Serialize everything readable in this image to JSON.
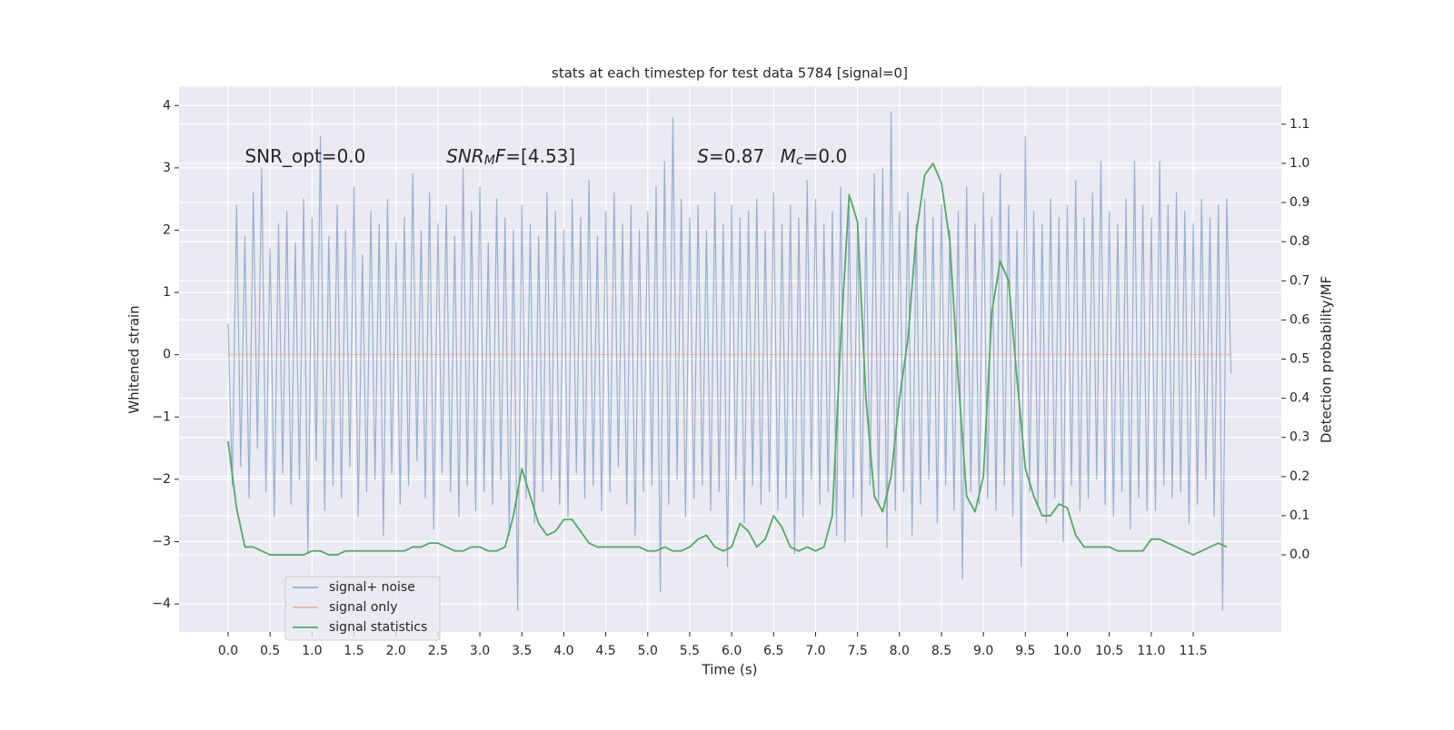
{
  "chart_data": {
    "type": "line",
    "title": "stats at each timestep for test data 5784 [signal=0]",
    "xlabel": "Time (s)",
    "ylabel": "Whitened strain",
    "y2label": "Detection probability/MF",
    "xlim": [
      -0.585,
      12.55
    ],
    "ylim": [
      -4.45,
      4.31
    ],
    "y2lim": [
      -0.197,
      1.197
    ],
    "xticks": [
      {
        "value": 0,
        "label": "0.0"
      },
      0.5,
      {
        "value": 1,
        "label": "1.0"
      },
      1.5,
      {
        "value": 2,
        "label": "2.0"
      },
      2.5,
      {
        "value": 3,
        "label": "3.0"
      },
      3.5,
      {
        "value": 4,
        "label": "4.0"
      },
      4.5,
      {
        "value": 5,
        "label": "5.0"
      },
      5.5,
      {
        "value": 6,
        "label": "6.0"
      },
      6.5,
      {
        "value": 7,
        "label": "7.0"
      },
      7.5,
      {
        "value": 8,
        "label": "8.0"
      },
      8.5,
      {
        "value": 9,
        "label": "9.0"
      },
      9.5,
      {
        "value": 10,
        "label": "10.0"
      },
      10.5,
      {
        "value": 11,
        "label": "11.0"
      },
      11.5
    ],
    "yticks": [
      {
        "value": -4,
        "label": "−4"
      },
      {
        "value": -3,
        "label": "−3"
      },
      {
        "value": -2,
        "label": "−2"
      },
      {
        "value": -1,
        "label": "−1"
      },
      0,
      1,
      2,
      3,
      4
    ],
    "y2ticks": [
      {
        "value": 0,
        "label": "0.0"
      },
      0.1,
      0.2,
      0.3,
      0.4,
      0.5,
      0.6,
      0.7,
      0.8,
      0.9,
      {
        "value": 1,
        "label": "1.0"
      },
      1.1
    ],
    "grid": true,
    "legend": "lower left",
    "annotations": [
      {
        "x": 0.2,
        "y": 3.17,
        "parts": [
          {
            "text": "SNR_opt=0.0"
          }
        ]
      },
      {
        "x": 2.6,
        "y": 3.17,
        "parts": [
          {
            "text": "SNR",
            "italic": true
          },
          {
            "text": "M",
            "italic": true,
            "sub": true
          },
          {
            "text": "F",
            "italic": true
          },
          {
            "text": "=[4.53]"
          }
        ]
      },
      {
        "x": 5.59,
        "y": 3.17,
        "parts": [
          {
            "text": "S",
            "italic": true
          },
          {
            "text": "=0.87"
          }
        ]
      },
      {
        "x": 6.58,
        "y": 3.17,
        "parts": [
          {
            "text": "M",
            "italic": true
          },
          {
            "text": "c",
            "italic": true,
            "sub": true
          },
          {
            "text": "=0.0"
          }
        ]
      }
    ],
    "series": [
      {
        "name": "signal+ noise",
        "color": "#4c72b0",
        "alpha": 0.5,
        "x": [
          0,
          0.05,
          0.1,
          0.15,
          0.2,
          0.25,
          0.3,
          0.35,
          0.4,
          0.45,
          0.5,
          0.55,
          0.6,
          0.65,
          0.7,
          0.75,
          0.8,
          0.85,
          0.9,
          0.95,
          1,
          1.05,
          1.1,
          1.15,
          1.2,
          1.25,
          1.3,
          1.35,
          1.4,
          1.45,
          1.5,
          1.55,
          1.6,
          1.65,
          1.7,
          1.75,
          1.8,
          1.85,
          1.9,
          1.95,
          2,
          2.05,
          2.1,
          2.15,
          2.2,
          2.25,
          2.3,
          2.35,
          2.4,
          2.45,
          2.5,
          2.55,
          2.6,
          2.65,
          2.7,
          2.75,
          2.8,
          2.85,
          2.9,
          2.95,
          3,
          3.05,
          3.1,
          3.15,
          3.2,
          3.25,
          3.3,
          3.35,
          3.4,
          3.45,
          3.5,
          3.55,
          3.6,
          3.65,
          3.7,
          3.75,
          3.8,
          3.85,
          3.9,
          3.95,
          4,
          4.05,
          4.1,
          4.15,
          4.2,
          4.25,
          4.3,
          4.35,
          4.4,
          4.45,
          4.5,
          4.55,
          4.6,
          4.65,
          4.7,
          4.75,
          4.8,
          4.85,
          4.9,
          4.95,
          5,
          5.05,
          5.1,
          5.15,
          5.2,
          5.25,
          5.3,
          5.35,
          5.4,
          5.45,
          5.5,
          5.55,
          5.6,
          5.65,
          5.7,
          5.75,
          5.8,
          5.85,
          5.9,
          5.95,
          6,
          6.05,
          6.1,
          6.15,
          6.2,
          6.25,
          6.3,
          6.35,
          6.4,
          6.45,
          6.5,
          6.55,
          6.6,
          6.65,
          6.7,
          6.75,
          6.8,
          6.85,
          6.9,
          6.95,
          7,
          7.05,
          7.1,
          7.15,
          7.2,
          7.25,
          7.3,
          7.35,
          7.4,
          7.45,
          7.5,
          7.55,
          7.6,
          7.65,
          7.7,
          7.75,
          7.8,
          7.85,
          7.9,
          7.95,
          8,
          8.05,
          8.1,
          8.15,
          8.2,
          8.25,
          8.3,
          8.35,
          8.4,
          8.45,
          8.5,
          8.55,
          8.6,
          8.65,
          8.7,
          8.75,
          8.8,
          8.85,
          8.9,
          8.95,
          9,
          9.05,
          9.1,
          9.15,
          9.2,
          9.25,
          9.3,
          9.35,
          9.4,
          9.45,
          9.5,
          9.55,
          9.6,
          9.65,
          9.7,
          9.75,
          9.8,
          9.85,
          9.9,
          9.95,
          10,
          10.05,
          10.1,
          10.15,
          10.2,
          10.25,
          10.3,
          10.35,
          10.4,
          10.45,
          10.5,
          10.55,
          10.6,
          10.65,
          10.7,
          10.75,
          10.8,
          10.85,
          10.9,
          10.95,
          11,
          11.05,
          11.1,
          11.15,
          11.2,
          11.25,
          11.3,
          11.35,
          11.4,
          11.45,
          11.5,
          11.55,
          11.6,
          11.65,
          11.7,
          11.75,
          11.8,
          11.85,
          11.9,
          11.95
        ],
        "values": [
          0.5,
          -2.1,
          2.4,
          -1.8,
          1.9,
          -2.3,
          2.6,
          -1.5,
          3.0,
          -2.2,
          1.7,
          -2.6,
          2.1,
          -1.9,
          2.3,
          -2.4,
          1.8,
          -2.0,
          2.5,
          -3.2,
          2.2,
          -1.7,
          3.5,
          -2.5,
          1.9,
          -2.1,
          2.4,
          -2.3,
          2.0,
          -1.8,
          2.7,
          -2.6,
          1.6,
          -2.2,
          2.3,
          -2.0,
          2.1,
          -2.9,
          2.5,
          -1.9,
          1.8,
          -2.4,
          2.2,
          -2.1,
          2.9,
          -1.7,
          2.0,
          -2.3,
          2.6,
          -2.8,
          2.1,
          -1.9,
          2.4,
          -2.2,
          1.9,
          -2.6,
          3.0,
          -2.1,
          2.3,
          -2.5,
          2.7,
          -2.2,
          1.8,
          -2.4,
          2.5,
          -2.0,
          2.2,
          -2.9,
          2.0,
          -4.1,
          2.4,
          -2.3,
          2.1,
          -2.7,
          1.9,
          -2.2,
          2.6,
          -2.0,
          2.3,
          -2.4,
          2.0,
          -2.6,
          2.5,
          -1.9,
          2.2,
          -2.3,
          2.8,
          -2.1,
          1.9,
          -2.5,
          2.3,
          -2.2,
          2.6,
          -1.8,
          2.1,
          -2.4,
          2.4,
          -2.9,
          2.0,
          -2.2,
          2.3,
          -2.1,
          2.7,
          -3.8,
          3.1,
          -2.4,
          3.8,
          -2.0,
          2.5,
          -2.6,
          2.2,
          -2.3,
          2.4,
          -2.1,
          2.0,
          -2.5,
          2.6,
          -2.2,
          2.1,
          -3.4,
          2.4,
          -2.0,
          2.2,
          -2.7,
          2.3,
          -2.1,
          2.5,
          -2.4,
          2.0,
          -2.2,
          2.6,
          -2.5,
          2.1,
          -2.3,
          2.4,
          -3.2,
          2.2,
          -2.6,
          2.8,
          -2.0,
          2.5,
          -2.4,
          2.1,
          -2.2,
          2.3,
          -2.9,
          2.7,
          -3.0,
          2.4,
          -2.3,
          2.0,
          -2.6,
          2.2,
          -2.1,
          2.9,
          -2.4,
          3.0,
          -3.1,
          3.9,
          -2.5,
          2.3,
          -2.2,
          2.6,
          -2.9,
          2.1,
          -2.4,
          2.5,
          -2.0,
          2.2,
          -2.7,
          2.4,
          -2.1,
          2.0,
          -2.5,
          2.3,
          -3.6,
          2.7,
          -2.2,
          2.1,
          -2.4,
          2.6,
          -2.3,
          2.2,
          -2.5,
          2.9,
          -2.1,
          2.4,
          -2.6,
          2.0,
          -3.4,
          3.5,
          -2.2,
          2.3,
          -2.4,
          2.1,
          -2.7,
          2.5,
          -2.3,
          2.2,
          -3.0,
          2.4,
          -2.1,
          2.8,
          -2.5,
          2.2,
          -2.3,
          2.6,
          -2.0,
          3.1,
          -2.4,
          2.3,
          -2.6,
          2.1,
          -2.2,
          2.5,
          -2.8,
          3.1,
          -2.3,
          2.4,
          -2.5,
          2.2,
          -2.5,
          3.1,
          -2.1,
          2.4,
          -2.3,
          2.6,
          -2.2,
          2.3,
          -2.7,
          2.1,
          -2.4,
          2.5,
          -2.0,
          2.2,
          -2.6,
          2.4,
          -4.1,
          2.5,
          -0.3
        ]
      },
      {
        "name": "signal only",
        "color": "#dd8452",
        "alpha": 0.5,
        "x": [
          0,
          11.95
        ],
        "values": [
          0,
          0
        ]
      },
      {
        "name": "signal statistics",
        "color": "#55a868",
        "alpha": 1,
        "axis": "y2",
        "x": [
          0,
          0.1,
          0.2,
          0.3,
          0.4,
          0.5,
          0.6,
          0.7,
          0.8,
          0.9,
          1,
          1.1,
          1.2,
          1.3,
          1.4,
          1.5,
          1.6,
          1.7,
          1.8,
          1.9,
          2,
          2.1,
          2.2,
          2.3,
          2.4,
          2.5,
          2.6,
          2.7,
          2.8,
          2.9,
          3,
          3.1,
          3.2,
          3.3,
          3.4,
          3.5,
          3.6,
          3.7,
          3.8,
          3.9,
          4,
          4.1,
          4.2,
          4.3,
          4.4,
          4.5,
          4.6,
          4.7,
          4.8,
          4.9,
          5,
          5.1,
          5.2,
          5.3,
          5.4,
          5.5,
          5.6,
          5.7,
          5.8,
          5.9,
          6,
          6.1,
          6.2,
          6.3,
          6.4,
          6.5,
          6.6,
          6.7,
          6.8,
          6.9,
          7,
          7.1,
          7.2,
          7.3,
          7.4,
          7.5,
          7.6,
          7.7,
          7.8,
          7.9,
          8,
          8.1,
          8.2,
          8.3,
          8.4,
          8.5,
          8.6,
          8.7,
          8.8,
          8.9,
          9,
          9.1,
          9.2,
          9.3,
          9.4,
          9.5,
          9.6,
          9.7,
          9.8,
          9.9,
          10,
          10.1,
          10.2,
          10.3,
          10.4,
          10.5,
          10.6,
          10.7,
          10.8,
          10.9,
          11,
          11.1,
          11.2,
          11.3,
          11.4,
          11.5,
          11.6,
          11.7,
          11.8,
          11.9
        ],
        "values": [
          0.29,
          0.12,
          0.02,
          0.02,
          0.01,
          0,
          0,
          0,
          0,
          0,
          0.01,
          0.01,
          0,
          0,
          0.01,
          0.01,
          0.01,
          0.01,
          0.01,
          0.01,
          0.01,
          0.01,
          0.02,
          0.02,
          0.03,
          0.03,
          0.02,
          0.01,
          0.01,
          0.02,
          0.02,
          0.01,
          0.01,
          0.02,
          0.1,
          0.22,
          0.15,
          0.08,
          0.05,
          0.06,
          0.09,
          0.09,
          0.06,
          0.03,
          0.02,
          0.02,
          0.02,
          0.02,
          0.02,
          0.02,
          0.01,
          0.01,
          0.02,
          0.01,
          0.01,
          0.02,
          0.04,
          0.05,
          0.02,
          0.01,
          0.02,
          0.08,
          0.06,
          0.02,
          0.04,
          0.1,
          0.07,
          0.02,
          0.01,
          0.02,
          0.01,
          0.02,
          0.1,
          0.55,
          0.92,
          0.85,
          0.4,
          0.15,
          0.11,
          0.2,
          0.4,
          0.55,
          0.82,
          0.97,
          1.0,
          0.95,
          0.8,
          0.45,
          0.15,
          0.11,
          0.2,
          0.62,
          0.75,
          0.7,
          0.45,
          0.22,
          0.15,
          0.1,
          0.1,
          0.13,
          0.12,
          0.05,
          0.02,
          0.02,
          0.02,
          0.02,
          0.01,
          0.01,
          0.01,
          0.01,
          0.04,
          0.04,
          0.03,
          0.02,
          0.01,
          0,
          0.01,
          0.02,
          0.03,
          0.02
        ]
      }
    ]
  }
}
